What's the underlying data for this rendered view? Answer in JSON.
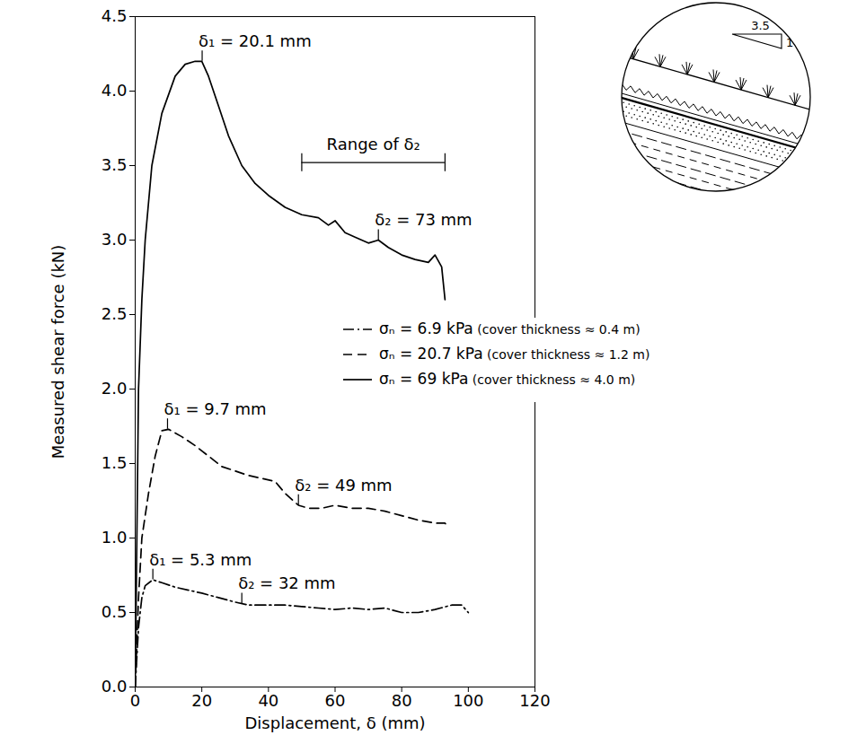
{
  "chart_data": {
    "type": "line",
    "x_label": "Displacement, δ (mm)",
    "y_label": "Measured shear force (kN)",
    "xlim": [
      0,
      120
    ],
    "xticks": [
      0,
      20,
      40,
      60,
      80,
      100,
      120
    ],
    "ylim": [
      0,
      4.5
    ],
    "yticks": [
      {
        "value": 0,
        "label": "0.0"
      },
      0.5,
      {
        "value": 1,
        "label": "1.0"
      },
      1.5,
      {
        "value": 2,
        "label": "2.0"
      },
      2.5,
      {
        "value": 3,
        "label": "3.0"
      },
      3.5,
      {
        "value": 4,
        "label": "4.0"
      },
      4.5
    ],
    "grid": false,
    "legend": "right",
    "series": [
      {
        "name": "σₙ = 6.9 kPa (cover thickness ≈ 0.4 m)",
        "color": "#000000",
        "line_style": "dashdot",
        "x": [
          0,
          1,
          2,
          3,
          5.3,
          8,
          12,
          16,
          20,
          25,
          30,
          34,
          40,
          45,
          50,
          55,
          60,
          65,
          70,
          75,
          80,
          85,
          90,
          95,
          98,
          100
        ],
        "values": [
          0,
          0.4,
          0.6,
          0.68,
          0.72,
          0.7,
          0.67,
          0.65,
          0.63,
          0.6,
          0.57,
          0.55,
          0.55,
          0.55,
          0.54,
          0.53,
          0.52,
          0.53,
          0.52,
          0.53,
          0.5,
          0.5,
          0.52,
          0.55,
          0.55,
          0.5
        ]
      },
      {
        "name": "σₙ = 20.7 kPa (cover thickness ≈ 1.2 m)",
        "color": "#000000",
        "line_style": "dashed",
        "x": [
          0,
          1,
          2,
          4,
          6,
          8,
          10,
          14,
          18,
          22,
          26,
          30,
          34,
          38,
          42,
          45,
          49,
          52,
          56,
          60,
          65,
          70,
          75,
          80,
          85,
          90,
          93,
          94
        ],
        "values": [
          0,
          0.6,
          1.0,
          1.3,
          1.55,
          1.72,
          1.73,
          1.68,
          1.62,
          1.55,
          1.48,
          1.45,
          1.42,
          1.4,
          1.38,
          1.3,
          1.22,
          1.2,
          1.2,
          1.22,
          1.2,
          1.2,
          1.18,
          1.15,
          1.12,
          1.1,
          1.1,
          1.07
        ]
      },
      {
        "name": "σₙ = 69 kPa (cover thickness ≈ 4.0 m)",
        "color": "#000000",
        "line_style": "solid",
        "x": [
          0,
          0.5,
          1,
          2,
          3,
          5,
          8,
          12,
          15,
          18,
          20,
          22,
          25,
          28,
          32,
          36,
          40,
          45,
          50,
          55,
          58,
          60,
          63,
          66,
          70,
          73,
          76,
          80,
          84,
          88,
          90,
          92,
          93
        ],
        "values": [
          0,
          1.0,
          2.0,
          2.6,
          3.0,
          3.5,
          3.85,
          4.1,
          4.18,
          4.2,
          4.2,
          4.1,
          3.9,
          3.7,
          3.5,
          3.38,
          3.3,
          3.22,
          3.17,
          3.15,
          3.1,
          3.13,
          3.05,
          3.02,
          2.98,
          3.0,
          2.95,
          2.9,
          2.87,
          2.85,
          2.9,
          2.82,
          2.6
        ]
      }
    ],
    "annotations": [
      {
        "text": "δ₁ = 20.1 mm",
        "x": 20.1,
        "y": 4.2
      },
      {
        "text": "δ₂ = 73 mm",
        "x": 73,
        "y": 3.0
      },
      {
        "text": "δ₁ = 9.7 mm",
        "x": 9.7,
        "y": 1.73
      },
      {
        "text": "δ₂ = 49 mm",
        "x": 49,
        "y": 1.22
      },
      {
        "text": "δ₁ = 5.3 mm",
        "x": 5.3,
        "y": 0.72
      },
      {
        "text": "δ₂ = 32 mm",
        "x": 32,
        "y": 0.56
      }
    ],
    "bracket": {
      "text": "Range of δ₂",
      "x1": 50,
      "x2": 93,
      "y": 3.52
    },
    "inset": {
      "labels": [
        "3.5",
        "1"
      ]
    }
  }
}
